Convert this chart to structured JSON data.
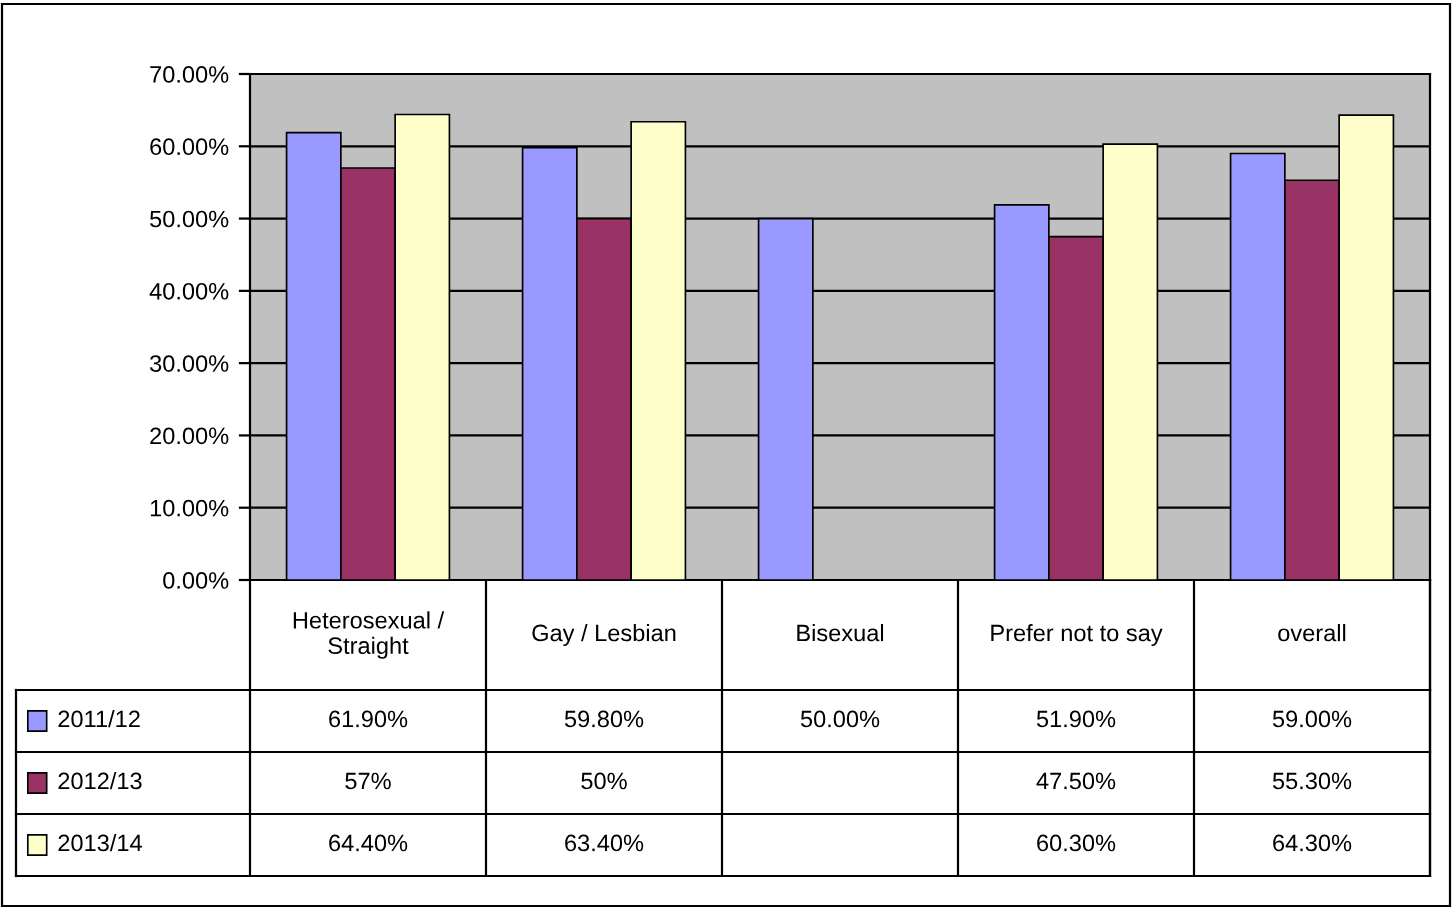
{
  "chart_data": {
    "type": "bar",
    "categories": [
      "Heterosexual / Straight",
      "Gay / Lesbian",
      "Bisexual",
      "Prefer not to say",
      "overall"
    ],
    "series": [
      {
        "name": "2011/12",
        "color": "#9999ff",
        "values": [
          61.9,
          59.8,
          50.0,
          51.9,
          59.0
        ],
        "value_labels": [
          "61.90%",
          "59.80%",
          "50.00%",
          "51.90%",
          "59.00%"
        ]
      },
      {
        "name": "2012/13",
        "color": "#993366",
        "values": [
          57,
          50,
          null,
          47.5,
          55.3
        ],
        "value_labels": [
          "57%",
          "50%",
          null,
          "47.50%",
          "55.30%"
        ]
      },
      {
        "name": "2013/14",
        "color": "#ffffcc",
        "values": [
          64.4,
          63.4,
          null,
          60.3,
          64.3
        ],
        "value_labels": [
          "64.40%",
          "63.40%",
          null,
          "60.30%",
          "64.30%"
        ]
      }
    ],
    "ylim": [
      0,
      70
    ],
    "yticks": [
      {
        "value": 0,
        "label": "0.00%"
      },
      {
        "value": 10,
        "label": "10.00%"
      },
      {
        "value": 20,
        "label": "20.00%"
      },
      {
        "value": 30,
        "label": "30.00%"
      },
      {
        "value": 40,
        "label": "40.00%"
      },
      {
        "value": 50,
        "label": "50.00%"
      },
      {
        "value": 60,
        "label": "60.00%"
      },
      {
        "value": 70,
        "label": "70.00%"
      }
    ],
    "grid": "y",
    "legend": "left"
  }
}
